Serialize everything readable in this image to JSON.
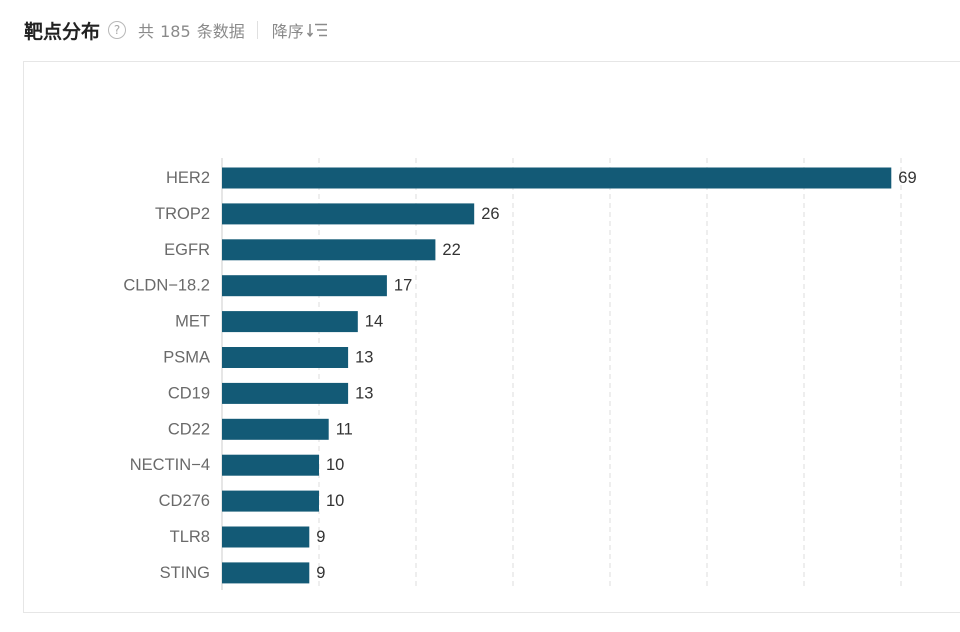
{
  "header": {
    "title": "靶点分布",
    "help_icon": "question-circle-icon",
    "count_text": "共 185 条数据",
    "sort_label": "降序",
    "sort_icon": "sort-descending-icon"
  },
  "colors": {
    "bar": "#135a76",
    "grid": "#dcdcdc",
    "axis": "#cccccc"
  },
  "chart_data": {
    "type": "bar",
    "orientation": "horizontal",
    "categories": [
      "HER2",
      "TROP2",
      "EGFR",
      "CLDN−18.2",
      "MET",
      "PSMA",
      "CD19",
      "CD22",
      "NECTIN−4",
      "CD276",
      "TLR8",
      "STING"
    ],
    "values": [
      69,
      26,
      22,
      17,
      14,
      13,
      13,
      11,
      10,
      10,
      9,
      9
    ],
    "data_labels": [
      "69",
      "26",
      "22",
      "17",
      "14",
      "13",
      "13",
      "11",
      "10",
      "10",
      "9",
      "9"
    ],
    "xlim": [
      0,
      70
    ],
    "grid": true,
    "grid_style": "dashed-vertical"
  }
}
